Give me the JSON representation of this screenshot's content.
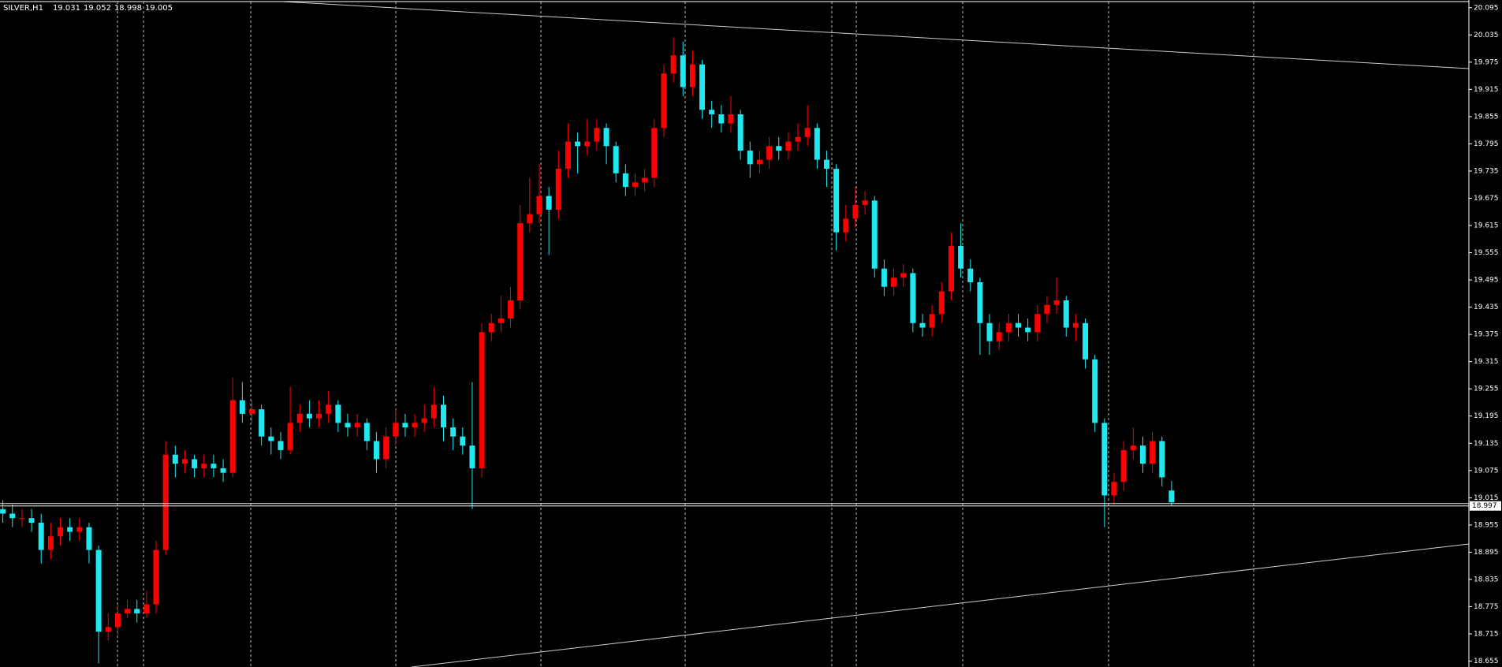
{
  "chart_data": {
    "type": "candlestick",
    "symbol": "SILVER,H1",
    "up_color": "#ff0000",
    "down_color": "#20e8f0",
    "ylim": [
      18.642,
      20.112
    ],
    "yticks": [
      20.095,
      20.035,
      19.975,
      19.915,
      19.855,
      19.795,
      19.735,
      19.675,
      19.615,
      19.555,
      19.495,
      19.435,
      19.375,
      19.315,
      19.255,
      19.195,
      19.135,
      19.075,
      19.015,
      18.955,
      18.895,
      18.835,
      18.775,
      18.715,
      18.655
    ],
    "current_price": 18.997,
    "open": [
      18.99,
      18.98,
      18.97,
      18.97,
      18.96,
      18.9,
      18.93,
      18.95,
      18.94,
      18.95,
      18.9,
      18.72,
      18.73,
      18.76,
      18.77,
      18.76,
      18.78,
      18.9,
      19.11,
      19.09,
      19.1,
      19.08,
      19.09,
      19.08,
      19.07,
      19.23,
      19.2,
      19.21,
      19.15,
      19.14,
      19.12,
      19.18,
      19.2,
      19.19,
      19.2,
      19.22,
      19.18,
      19.17,
      19.18,
      19.14,
      19.1,
      19.15,
      19.18,
      19.17,
      19.18,
      19.19,
      19.22,
      19.17,
      19.15,
      19.13,
      19.08,
      19.38,
      19.4,
      19.41,
      19.45,
      19.62,
      19.64,
      19.68,
      19.65,
      19.74,
      19.8,
      19.79,
      19.8,
      19.83,
      19.79,
      19.73,
      19.7,
      19.71,
      19.72,
      19.83,
      19.95,
      19.99,
      19.92,
      19.97,
      19.87,
      19.86,
      19.84,
      19.86,
      19.78,
      19.75,
      19.76,
      19.79,
      19.78,
      19.8,
      19.81,
      19.83,
      19.76,
      19.74,
      19.6,
      19.63,
      19.66,
      19.67,
      19.52,
      19.48,
      19.5,
      19.51,
      19.4,
      19.39,
      19.42,
      19.47,
      19.57,
      19.52,
      19.49,
      19.4,
      19.36,
      19.38,
      19.4,
      19.39,
      19.38,
      19.42,
      19.44,
      19.45,
      19.39,
      19.4,
      19.32,
      19.18,
      19.02,
      19.05,
      19.12,
      19.13,
      19.09,
      19.14,
      19.031
    ],
    "high": [
      19.01,
      19.0,
      18.99,
      18.99,
      18.98,
      18.96,
      18.97,
      18.97,
      18.97,
      18.96,
      18.91,
      18.76,
      18.78,
      18.79,
      18.79,
      18.81,
      18.92,
      19.14,
      19.13,
      19.12,
      19.11,
      19.11,
      19.11,
      19.1,
      19.28,
      19.27,
      19.23,
      19.22,
      19.17,
      19.16,
      19.26,
      19.22,
      19.23,
      19.23,
      19.25,
      19.23,
      19.2,
      19.2,
      19.19,
      19.16,
      19.17,
      19.21,
      19.2,
      19.2,
      19.22,
      19.26,
      19.24,
      19.19,
      19.17,
      19.27,
      19.4,
      19.42,
      19.46,
      19.48,
      19.66,
      19.72,
      19.75,
      19.7,
      19.78,
      19.84,
      19.82,
      19.85,
      19.85,
      19.84,
      19.8,
      19.75,
      19.73,
      19.74,
      19.85,
      19.97,
      20.03,
      20.02,
      20.0,
      19.98,
      19.89,
      19.88,
      19.9,
      19.87,
      19.8,
      19.78,
      19.81,
      19.81,
      19.82,
      19.84,
      19.88,
      19.84,
      19.78,
      19.75,
      19.66,
      19.7,
      19.69,
      19.68,
      19.54,
      19.52,
      19.53,
      19.52,
      19.42,
      19.44,
      19.49,
      19.6,
      19.62,
      19.54,
      19.5,
      19.42,
      19.4,
      19.42,
      19.42,
      19.41,
      19.44,
      19.46,
      19.5,
      19.46,
      19.42,
      19.41,
      19.33,
      19.19,
      19.07,
      19.14,
      19.17,
      19.15,
      19.16,
      19.15,
      19.052
    ],
    "low": [
      18.96,
      18.95,
      18.95,
      18.94,
      18.87,
      18.88,
      18.91,
      18.92,
      18.92,
      18.87,
      18.65,
      18.7,
      18.71,
      18.75,
      18.74,
      18.75,
      18.76,
      18.89,
      19.06,
      19.07,
      19.06,
      19.06,
      19.06,
      19.05,
      19.06,
      19.18,
      19.18,
      19.13,
      19.11,
      19.1,
      19.11,
      19.16,
      19.17,
      19.17,
      19.18,
      19.16,
      19.15,
      19.15,
      19.12,
      19.07,
      19.08,
      19.13,
      19.15,
      19.15,
      19.16,
      19.17,
      19.14,
      19.12,
      19.11,
      18.99,
      19.06,
      19.36,
      19.38,
      19.39,
      19.43,
      19.6,
      19.62,
      19.55,
      19.63,
      19.72,
      19.73,
      19.77,
      19.78,
      19.75,
      19.71,
      19.68,
      19.68,
      19.69,
      19.7,
      19.81,
      19.93,
      19.9,
      19.9,
      19.85,
      19.83,
      19.82,
      19.82,
      19.76,
      19.72,
      19.73,
      19.74,
      19.76,
      19.76,
      19.78,
      19.79,
      19.74,
      19.7,
      19.56,
      19.58,
      19.61,
      19.64,
      19.5,
      19.46,
      19.46,
      19.48,
      19.38,
      19.37,
      19.37,
      19.4,
      19.45,
      19.5,
      19.47,
      19.33,
      19.33,
      19.34,
      19.36,
      19.37,
      19.36,
      19.36,
      19.4,
      19.42,
      19.37,
      19.36,
      19.3,
      19.16,
      18.95,
      19.0,
      19.03,
      19.1,
      19.07,
      19.07,
      19.04,
      18.998
    ],
    "close": [
      18.98,
      18.97,
      18.97,
      18.96,
      18.9,
      18.93,
      18.95,
      18.94,
      18.95,
      18.9,
      18.72,
      18.73,
      18.76,
      18.77,
      18.76,
      18.78,
      18.9,
      19.11,
      19.09,
      19.1,
      19.08,
      19.09,
      19.08,
      19.07,
      19.23,
      19.2,
      19.21,
      19.15,
      19.14,
      19.12,
      19.18,
      19.2,
      19.19,
      19.2,
      19.22,
      19.18,
      19.17,
      19.18,
      19.14,
      19.1,
      19.15,
      19.18,
      19.17,
      19.18,
      19.19,
      19.22,
      19.17,
      19.15,
      19.13,
      19.08,
      19.38,
      19.4,
      19.41,
      19.45,
      19.62,
      19.64,
      19.68,
      19.65,
      19.74,
      19.8,
      19.79,
      19.8,
      19.83,
      19.79,
      19.73,
      19.7,
      19.71,
      19.72,
      19.83,
      19.95,
      19.99,
      19.92,
      19.97,
      19.87,
      19.86,
      19.84,
      19.86,
      19.78,
      19.75,
      19.76,
      19.79,
      19.78,
      19.8,
      19.81,
      19.83,
      19.76,
      19.74,
      19.6,
      19.63,
      19.66,
      19.67,
      19.52,
      19.48,
      19.5,
      19.51,
      19.4,
      19.39,
      19.42,
      19.47,
      19.57,
      19.52,
      19.49,
      19.4,
      19.36,
      19.38,
      19.4,
      19.39,
      19.38,
      19.42,
      19.44,
      19.45,
      19.39,
      19.4,
      19.32,
      19.18,
      19.02,
      19.05,
      19.12,
      19.13,
      19.09,
      19.14,
      19.06,
      19.005
    ]
  }
}
